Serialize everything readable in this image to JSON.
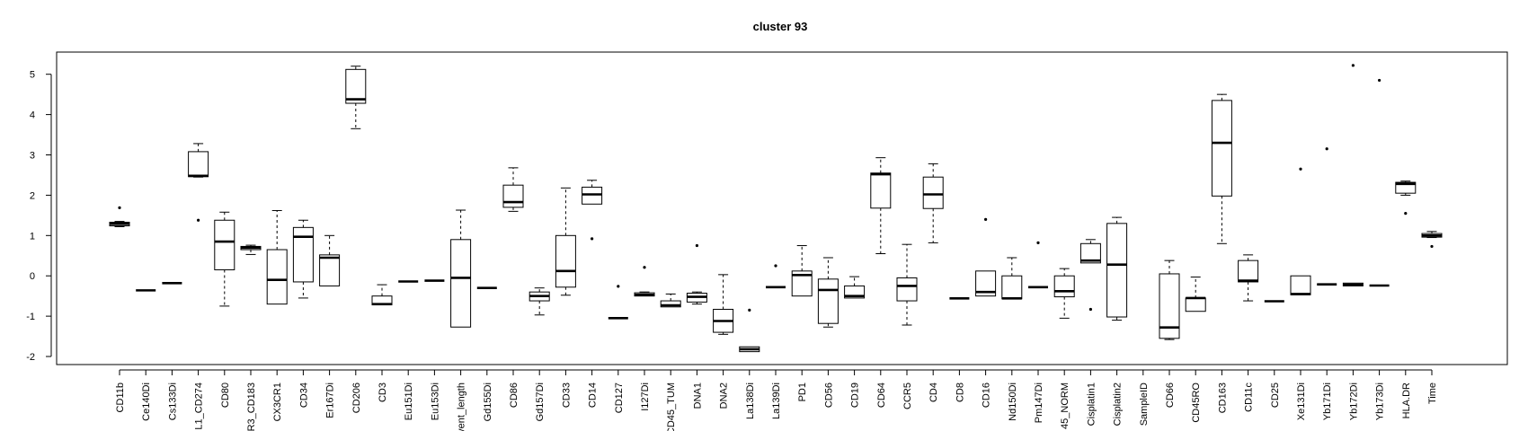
{
  "chart_data": {
    "type": "boxplot",
    "title": "cluster 93",
    "xlabel": "",
    "ylabel": "",
    "ylim": [
      -2.2,
      5.55
    ],
    "yticks": [
      -2,
      -1,
      0,
      1,
      2,
      3,
      4,
      5
    ],
    "grid": false,
    "legend": "none",
    "colors": {
      "box_fill": "#ffffff",
      "stroke": "#000000",
      "background": "#ffffff"
    },
    "boxes": [
      {
        "label": "CD11b",
        "whislo": 1.22,
        "q1": 1.24,
        "med": 1.29,
        "q3": 1.33,
        "whishi": 1.35,
        "fliers": [
          1.69
        ]
      },
      {
        "label": "Ce140Di",
        "whislo": -0.36,
        "q1": -0.36,
        "med": -0.36,
        "q3": -0.36,
        "whishi": -0.36,
        "fliers": []
      },
      {
        "label": "Cs133Di",
        "whislo": -0.18,
        "q1": -0.18,
        "med": -0.18,
        "q3": -0.18,
        "whishi": -0.18,
        "fliers": []
      },
      {
        "label": "L1_CD274",
        "whislo": 2.45,
        "q1": 2.46,
        "med": 2.48,
        "q3": 3.08,
        "whishi": 3.28,
        "fliers": [
          1.38
        ]
      },
      {
        "label": "CD80",
        "whislo": -0.75,
        "q1": 0.15,
        "med": 0.85,
        "q3": 1.38,
        "whishi": 1.58,
        "fliers": []
      },
      {
        "label": "R3_CD183",
        "whislo": 0.53,
        "q1": 0.65,
        "med": 0.7,
        "q3": 0.73,
        "whishi": 0.76,
        "fliers": []
      },
      {
        "label": "CX3CR1",
        "whislo": -0.7,
        "q1": -0.7,
        "med": -0.1,
        "q3": 0.65,
        "whishi": 1.62,
        "fliers": []
      },
      {
        "label": "CD34",
        "whislo": -0.55,
        "q1": -0.15,
        "med": 0.97,
        "q3": 1.2,
        "whishi": 1.38,
        "fliers": []
      },
      {
        "label": "Er167Di",
        "whislo": -0.25,
        "q1": -0.25,
        "med": 0.45,
        "q3": 0.52,
        "whishi": 1.0,
        "fliers": []
      },
      {
        "label": "CD206",
        "whislo": 3.65,
        "q1": 4.28,
        "med": 4.38,
        "q3": 5.12,
        "whishi": 5.2,
        "fliers": []
      },
      {
        "label": "CD3",
        "whislo": -0.72,
        "q1": -0.72,
        "med": -0.7,
        "q3": -0.5,
        "whishi": -0.22,
        "fliers": []
      },
      {
        "label": "Eu151Di",
        "whislo": -0.14,
        "q1": -0.14,
        "med": -0.14,
        "q3": -0.14,
        "whishi": -0.14,
        "fliers": []
      },
      {
        "label": "Eu153Di",
        "whislo": -0.12,
        "q1": -0.12,
        "med": -0.12,
        "q3": -0.12,
        "whishi": -0.12,
        "fliers": []
      },
      {
        "label": "vent_length",
        "whislo": -1.27,
        "q1": -1.27,
        "med": -0.05,
        "q3": 0.9,
        "whishi": 1.63,
        "fliers": []
      },
      {
        "label": "Gd155Di",
        "whislo": -0.3,
        "q1": -0.3,
        "med": -0.3,
        "q3": -0.3,
        "whishi": -0.3,
        "fliers": []
      },
      {
        "label": "CD86",
        "whislo": 1.6,
        "q1": 1.7,
        "med": 1.83,
        "q3": 2.25,
        "whishi": 2.68,
        "fliers": []
      },
      {
        "label": "Gd157Di",
        "whislo": -0.97,
        "q1": -0.62,
        "med": -0.5,
        "q3": -0.4,
        "whishi": -0.3,
        "fliers": []
      },
      {
        "label": "CD33",
        "whislo": -0.48,
        "q1": -0.28,
        "med": 0.12,
        "q3": 1.0,
        "whishi": 2.18,
        "fliers": []
      },
      {
        "label": "CD14",
        "whislo": 1.78,
        "q1": 1.78,
        "med": 2.02,
        "q3": 2.2,
        "whishi": 2.37,
        "fliers": [
          0.92
        ]
      },
      {
        "label": "CD127",
        "whislo": -1.05,
        "q1": -1.05,
        "med": -1.05,
        "q3": -1.05,
        "whishi": -1.05,
        "fliers": [
          -0.26
        ]
      },
      {
        "label": "I127Di",
        "whislo": -0.5,
        "q1": -0.5,
        "med": -0.47,
        "q3": -0.42,
        "whishi": -0.4,
        "fliers": [
          0.21
        ]
      },
      {
        "label": "CD45_TUM",
        "whislo": -0.77,
        "q1": -0.77,
        "med": -0.73,
        "q3": -0.62,
        "whishi": -0.45,
        "fliers": []
      },
      {
        "label": "DNA1",
        "whislo": -0.7,
        "q1": -0.65,
        "med": -0.52,
        "q3": -0.43,
        "whishi": -0.4,
        "fliers": [
          0.75
        ]
      },
      {
        "label": "DNA2",
        "whislo": -1.45,
        "q1": -1.4,
        "med": -1.12,
        "q3": -0.83,
        "whishi": 0.03,
        "fliers": []
      },
      {
        "label": "La138Di",
        "whislo": -1.88,
        "q1": -1.88,
        "med": -1.82,
        "q3": -1.76,
        "whishi": -1.76,
        "fliers": [
          -0.85
        ]
      },
      {
        "label": "La139Di",
        "whislo": -0.28,
        "q1": -0.28,
        "med": -0.28,
        "q3": -0.28,
        "whishi": -0.28,
        "fliers": [
          0.25
        ]
      },
      {
        "label": "PD1",
        "whislo": -0.5,
        "q1": -0.5,
        "med": 0.02,
        "q3": 0.12,
        "whishi": 0.75,
        "fliers": []
      },
      {
        "label": "CD56",
        "whislo": -1.27,
        "q1": -1.18,
        "med": -0.35,
        "q3": -0.08,
        "whishi": 0.45,
        "fliers": []
      },
      {
        "label": "CD19",
        "whislo": -0.55,
        "q1": -0.55,
        "med": -0.5,
        "q3": -0.25,
        "whishi": -0.02,
        "fliers": []
      },
      {
        "label": "CD64",
        "whislo": 0.55,
        "q1": 1.68,
        "med": 2.52,
        "q3": 2.55,
        "whishi": 2.93,
        "fliers": []
      },
      {
        "label": "CCR5",
        "whislo": -1.22,
        "q1": -0.62,
        "med": -0.25,
        "q3": -0.05,
        "whishi": 0.78,
        "fliers": []
      },
      {
        "label": "CD4",
        "whislo": 0.82,
        "q1": 1.67,
        "med": 2.02,
        "q3": 2.45,
        "whishi": 2.78,
        "fliers": []
      },
      {
        "label": "CD8",
        "whislo": -0.56,
        "q1": -0.56,
        "med": -0.56,
        "q3": -0.56,
        "whishi": -0.56,
        "fliers": []
      },
      {
        "label": "CD16",
        "whislo": -0.5,
        "q1": -0.5,
        "med": -0.4,
        "q3": 0.12,
        "whishi": 0.12,
        "fliers": [
          1.4
        ]
      },
      {
        "label": "Nd150Di",
        "whislo": -0.57,
        "q1": -0.57,
        "med": -0.56,
        "q3": 0.0,
        "whishi": 0.45,
        "fliers": []
      },
      {
        "label": "Pm147Di",
        "whislo": -0.28,
        "q1": -0.28,
        "med": -0.28,
        "q3": -0.28,
        "whishi": -0.28,
        "fliers": [
          0.82
        ]
      },
      {
        "label": "45_NORM",
        "whislo": -1.05,
        "q1": -0.52,
        "med": -0.38,
        "q3": 0.0,
        "whishi": 0.18,
        "fliers": []
      },
      {
        "label": "Cisplatin1",
        "whislo": 0.32,
        "q1": 0.32,
        "med": 0.38,
        "q3": 0.8,
        "whishi": 0.9,
        "fliers": [
          -0.83
        ]
      },
      {
        "label": "Cisplatin2",
        "whislo": -1.1,
        "q1": -1.02,
        "med": 0.28,
        "q3": 1.3,
        "whishi": 1.45,
        "fliers": []
      },
      {
        "label": "SampleID",
        "whislo": null,
        "q1": null,
        "med": null,
        "q3": null,
        "whishi": null,
        "fliers": []
      },
      {
        "label": "CD66",
        "whislo": -1.58,
        "q1": -1.55,
        "med": -1.28,
        "q3": 0.05,
        "whishi": 0.38,
        "fliers": []
      },
      {
        "label": "CD45RO",
        "whislo": -0.88,
        "q1": -0.88,
        "med": -0.55,
        "q3": -0.55,
        "whishi": -0.03,
        "fliers": []
      },
      {
        "label": "CD163",
        "whislo": 0.8,
        "q1": 1.98,
        "med": 3.3,
        "q3": 4.35,
        "whishi": 4.5,
        "fliers": []
      },
      {
        "label": "CD11c",
        "whislo": -0.62,
        "q1": -0.15,
        "med": -0.12,
        "q3": 0.38,
        "whishi": 0.52,
        "fliers": []
      },
      {
        "label": "CD25",
        "whislo": -0.63,
        "q1": -0.63,
        "med": -0.63,
        "q3": -0.63,
        "whishi": -0.63,
        "fliers": []
      },
      {
        "label": "Xe131Di",
        "whislo": -0.47,
        "q1": -0.47,
        "med": -0.45,
        "q3": 0.0,
        "whishi": 0.0,
        "fliers": [
          2.65
        ]
      },
      {
        "label": "Yb171Di",
        "whislo": -0.21,
        "q1": -0.21,
        "med": -0.21,
        "q3": -0.21,
        "whishi": -0.21,
        "fliers": [
          3.15
        ]
      },
      {
        "label": "Yb172Di",
        "whislo": -0.25,
        "q1": -0.25,
        "med": -0.22,
        "q3": -0.18,
        "whishi": -0.18,
        "fliers": [
          5.22
        ]
      },
      {
        "label": "Yb173Di",
        "whislo": -0.24,
        "q1": -0.24,
        "med": -0.24,
        "q3": -0.24,
        "whishi": -0.24,
        "fliers": [
          4.85
        ]
      },
      {
        "label": "HLA.DR",
        "whislo": 2.0,
        "q1": 2.05,
        "med": 2.28,
        "q3": 2.32,
        "whishi": 2.35,
        "fliers": [
          1.55
        ]
      },
      {
        "label": "Time",
        "whislo": 0.95,
        "q1": 0.96,
        "med": 1.0,
        "q3": 1.05,
        "whishi": 1.1,
        "fliers": [
          0.73
        ]
      }
    ]
  }
}
